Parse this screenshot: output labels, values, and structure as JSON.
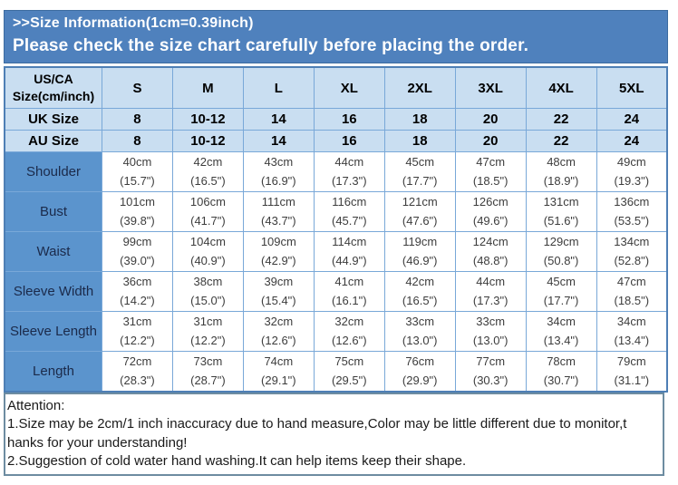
{
  "banner": {
    "title": ">>Size Information(1cm=0.39inch)",
    "subtitle": "Please check the size chart carefully before placing the order."
  },
  "table": {
    "corner_label": "US/CA Size(cm/inch)",
    "size_columns": [
      "S",
      "M",
      "L",
      "XL",
      "2XL",
      "3XL",
      "4XL",
      "5XL"
    ],
    "size_rows": [
      {
        "label": "UK Size",
        "values": [
          "8",
          "10-12",
          "14",
          "16",
          "18",
          "20",
          "22",
          "24"
        ]
      },
      {
        "label": "AU Size",
        "values": [
          "8",
          "10-12",
          "14",
          "16",
          "18",
          "20",
          "22",
          "24"
        ]
      }
    ],
    "measurement_rows": [
      {
        "label": "Shoulder",
        "cm": [
          "40cm",
          "42cm",
          "43cm",
          "44cm",
          "45cm",
          "47cm",
          "48cm",
          "49cm"
        ],
        "inch": [
          "(15.7\")",
          "(16.5\")",
          "(16.9\")",
          "(17.3\")",
          "(17.7\")",
          "(18.5\")",
          "(18.9\")",
          "(19.3\")"
        ]
      },
      {
        "label": "Bust",
        "cm": [
          "101cm",
          "106cm",
          "111cm",
          "116cm",
          "121cm",
          "126cm",
          "131cm",
          "136cm"
        ],
        "inch": [
          "(39.8\")",
          "(41.7\")",
          "(43.7\")",
          "(45.7\")",
          "(47.6\")",
          "(49.6\")",
          "(51.6\")",
          "(53.5\")"
        ]
      },
      {
        "label": "Waist",
        "cm": [
          "99cm",
          "104cm",
          "109cm",
          "114cm",
          "119cm",
          "124cm",
          "129cm",
          "134cm"
        ],
        "inch": [
          "(39.0\")",
          "(40.9\")",
          "(42.9\")",
          "(44.9\")",
          "(46.9\")",
          "(48.8\")",
          "(50.8\")",
          "(52.8\")"
        ]
      },
      {
        "label": "Sleeve Width",
        "cm": [
          "36cm",
          "38cm",
          "39cm",
          "41cm",
          "42cm",
          "44cm",
          "45cm",
          "47cm"
        ],
        "inch": [
          "(14.2\")",
          "(15.0\")",
          "(15.4\")",
          "(16.1\")",
          "(16.5\")",
          "(17.3\")",
          "(17.7\")",
          "(18.5\")"
        ]
      },
      {
        "label": "Sleeve Length",
        "cm": [
          "31cm",
          "31cm",
          "32cm",
          "32cm",
          "33cm",
          "33cm",
          "34cm",
          "34cm"
        ],
        "inch": [
          "(12.2\")",
          "(12.2\")",
          "(12.6\")",
          "(12.6\")",
          "(13.0\")",
          "(13.0\")",
          "(13.4\")",
          "(13.4\")"
        ]
      },
      {
        "label": "Length",
        "cm": [
          "72cm",
          "73cm",
          "74cm",
          "75cm",
          "76cm",
          "77cm",
          "78cm",
          "79cm"
        ],
        "inch": [
          "(28.3\")",
          "(28.7\")",
          "(29.1\")",
          "(29.5\")",
          "(29.9\")",
          "(30.3\")",
          "(30.7\")",
          "(31.1\")"
        ]
      }
    ]
  },
  "attention": {
    "heading": "Attention:",
    "lines": [
      "1.Size may be 2cm/1 inch inaccuracy due to hand measure,Color may be little different due to monitor,t",
      "hanks for your understanding!",
      "2.Suggestion of cold water hand washing.It can help items keep their shape."
    ]
  },
  "colors": {
    "banner_blue": "#4f81bd",
    "header_light_blue": "#c9def1",
    "label_column_blue": "#5b94cd",
    "grid_line_blue": "#79a8d8",
    "attention_border": "#6d8ca1"
  }
}
